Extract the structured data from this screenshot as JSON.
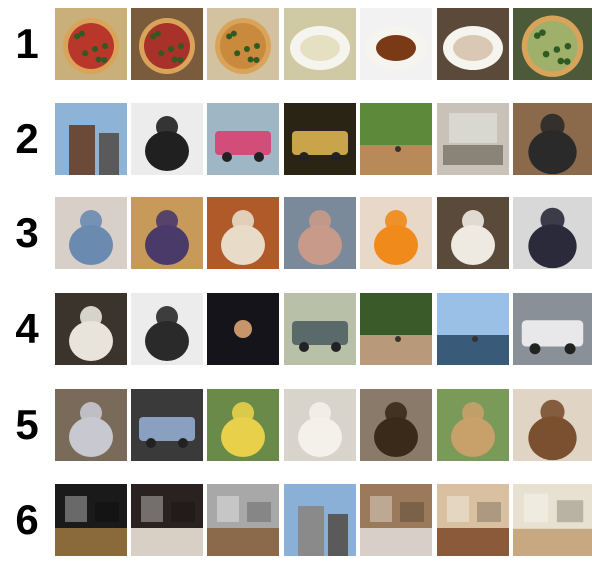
{
  "rows": [
    {
      "label": "1",
      "tiles": [
        {
          "icon": "pizza-photo",
          "bg": "#c9b07a",
          "fg": "#b8372a"
        },
        {
          "icon": "pizza-photo",
          "bg": "#7a5b3c",
          "fg": "#a8322a"
        },
        {
          "icon": "pizza-photo",
          "bg": "#d3c2a0",
          "fg": "#c98a3d"
        },
        {
          "icon": "dumplings-photo",
          "bg": "#cfc9a4",
          "fg": "#e6e0c2"
        },
        {
          "icon": "stir-fry-plate-photo",
          "bg": "#f2f2f2",
          "fg": "#7a3a16"
        },
        {
          "icon": "restaurant-table-photo",
          "bg": "#5b4a3a",
          "fg": "#d8c8b4"
        },
        {
          "icon": "pizza-photo",
          "bg": "#4d5a3a",
          "fg": "#9fb06a"
        }
      ]
    },
    {
      "label": "2",
      "tiles": [
        {
          "icon": "victorian-house-photo",
          "bg": "#8db4d6",
          "fg": "#6b4a3a"
        },
        {
          "icon": "skateboarder-photo",
          "bg": "#ececec",
          "fg": "#202020"
        },
        {
          "icon": "food-truck-photo",
          "bg": "#9fb6c4",
          "fg": "#d24d7a"
        },
        {
          "icon": "bus-photo",
          "bg": "#2a2414",
          "fg": "#c9a44a"
        },
        {
          "icon": "baseball-field-photo",
          "bg": "#5c8a3a",
          "fg": "#b88a5a"
        },
        {
          "icon": "laptop-photo",
          "bg": "#c8c2b8",
          "fg": "#8a8478"
        },
        {
          "icon": "skateboarder-photo",
          "bg": "#8a6a4a",
          "fg": "#2a2a2a"
        }
      ]
    },
    {
      "label": "3",
      "tiles": [
        {
          "icon": "child-photo",
          "bg": "#d8d0c8",
          "fg": "#6a8ab0"
        },
        {
          "icon": "man-eating-photo",
          "bg": "#c89a5a",
          "fg": "#4a3a6a"
        },
        {
          "icon": "bulldog-photo",
          "bg": "#b05a2a",
          "fg": "#e8dcc8"
        },
        {
          "icon": "girl-photo",
          "bg": "#7a8a9a",
          "fg": "#c89a8a"
        },
        {
          "icon": "baby-orange-photo",
          "bg": "#e8d8c8",
          "fg": "#f08a1a"
        },
        {
          "icon": "polar-bears-photo",
          "bg": "#5a4a3a",
          "fg": "#eeeae2"
        },
        {
          "icon": "motorcyclist-photo",
          "bg": "#d8d8d8",
          "fg": "#2a2a3a"
        }
      ]
    },
    {
      "label": "4",
      "tiles": [
        {
          "icon": "cat-photo",
          "bg": "#3a342c",
          "fg": "#e8e4dc"
        },
        {
          "icon": "skier-photo",
          "bg": "#ececec",
          "fg": "#2a2a2a"
        },
        {
          "icon": "moon-photo",
          "bg": "#14141a",
          "fg": "#c8946a"
        },
        {
          "icon": "car-photo",
          "bg": "#b8c0a8",
          "fg": "#5a6a6a"
        },
        {
          "icon": "fence-yard-photo",
          "bg": "#3a5a2a",
          "fg": "#b89a7a"
        },
        {
          "icon": "kite-beach-photo",
          "bg": "#9ac0e8",
          "fg": "#3a5a7a"
        },
        {
          "icon": "city-bus-photo",
          "bg": "#8a9098",
          "fg": "#e8e8ea"
        }
      ]
    },
    {
      "label": "5",
      "tiles": [
        {
          "icon": "husky-photo",
          "bg": "#7a6a5a",
          "fg": "#c8c8d0"
        },
        {
          "icon": "car-interior-photo",
          "bg": "#3a3a3a",
          "fg": "#8aa0c0"
        },
        {
          "icon": "bird-photo",
          "bg": "#6a8a4a",
          "fg": "#e8d04a"
        },
        {
          "icon": "teddy-bear-photo",
          "bg": "#d8d4cc",
          "fg": "#f4f0ea"
        },
        {
          "icon": "bison-photo",
          "bg": "#8a7a6a",
          "fg": "#3a2a1a"
        },
        {
          "icon": "giraffes-photo",
          "bg": "#7a9a5a",
          "fg": "#c8a06a"
        },
        {
          "icon": "wooden-chest-photo",
          "bg": "#e0d4c4",
          "fg": "#7a5030"
        }
      ]
    },
    {
      "label": "6",
      "tiles": [
        {
          "icon": "dark-kitchen-photo",
          "bg": "#1a1a1a",
          "fg": "#8a6a3a"
        },
        {
          "icon": "office-room-photo",
          "bg": "#2a2220",
          "fg": "#d8d0c4"
        },
        {
          "icon": "empty-room-photo",
          "bg": "#a8a8a8",
          "fg": "#8a6a4a"
        },
        {
          "icon": "city-street-photo",
          "bg": "#8ab0d8",
          "fg": "#8a8a8a"
        },
        {
          "icon": "kitchen-photo",
          "bg": "#9a7a5a",
          "fg": "#d8d0c8"
        },
        {
          "icon": "kitchen-photo",
          "bg": "#d8c0a0",
          "fg": "#8a5a3a"
        },
        {
          "icon": "bathroom-photo",
          "bg": "#e8e0d0",
          "fg": "#c8a880"
        }
      ]
    }
  ]
}
